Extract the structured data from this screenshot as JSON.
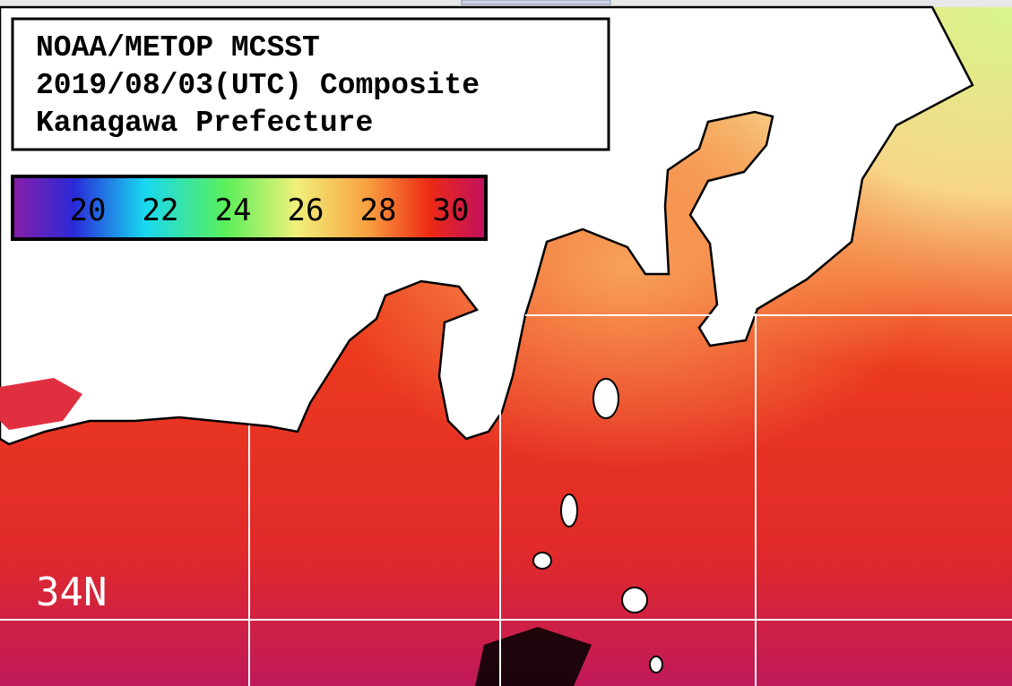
{
  "header": {
    "title_lines": [
      "NOAA/METOP MCSST",
      "2019/08/03(UTC) Composite",
      "Kanagawa Prefecture"
    ]
  },
  "colorbar": {
    "ticks": [
      20,
      22,
      24,
      26,
      28,
      30
    ]
  },
  "map": {
    "grid_labels": [
      "34N"
    ]
  }
}
